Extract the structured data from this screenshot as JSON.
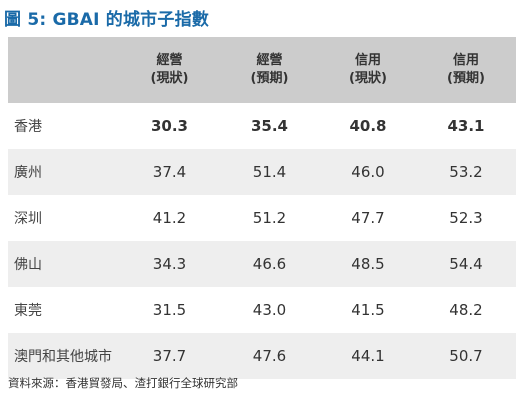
{
  "title": "圖 5:  GBAI 的城市子指數",
  "headers": [
    {
      "l1": "",
      "l2": ""
    },
    {
      "l1": "經營",
      "l2": "(現狀)"
    },
    {
      "l1": "經營",
      "l2": "(預期)"
    },
    {
      "l1": "信用",
      "l2": "(現狀)"
    },
    {
      "l1": "信用",
      "l2": "(預期)"
    }
  ],
  "rows": [
    {
      "name": "香港",
      "values": [
        "30.3",
        "35.4",
        "40.8",
        "43.1"
      ]
    },
    {
      "name": "廣州",
      "values": [
        "37.4",
        "51.4",
        "46.0",
        "53.2"
      ]
    },
    {
      "name": "深圳",
      "values": [
        "41.2",
        "51.2",
        "47.7",
        "52.3"
      ]
    },
    {
      "name": "佛山",
      "values": [
        "34.3",
        "46.6",
        "48.5",
        "54.4"
      ]
    },
    {
      "name": "東莞",
      "values": [
        "31.5",
        "43.0",
        "41.5",
        "48.2"
      ]
    },
    {
      "name": "澳門和其他城市",
      "values": [
        "37.7",
        "47.6",
        "44.1",
        "50.7"
      ]
    }
  ],
  "source": "資料來源：香港貿發局、渣打銀行全球研究部"
}
